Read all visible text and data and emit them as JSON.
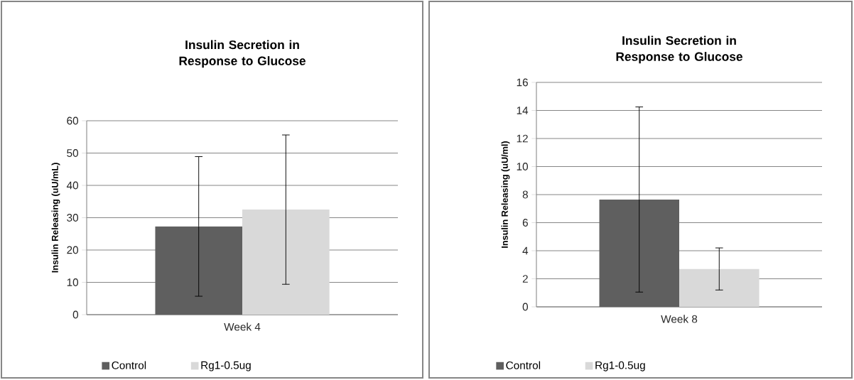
{
  "chart_data": [
    {
      "type": "bar",
      "title": "Insulin Secretion in Response to Glucose",
      "ylabel": "Insulin Releasing (uU/mL)",
      "categories": [
        "Week 4"
      ],
      "series": [
        {
          "name": "Control",
          "color": "#5f5f5f",
          "values": [
            27.3
          ],
          "errors": [
            21.6
          ]
        },
        {
          "name": "Rg1-0.5ug",
          "color": "#d9d9d9",
          "values": [
            32.5
          ],
          "errors": [
            23.1
          ]
        }
      ],
      "ylim": [
        0,
        60
      ],
      "yticks": [
        0,
        10,
        20,
        30,
        40,
        50,
        60
      ],
      "grid": "y",
      "legend": "bottom"
    },
    {
      "type": "bar",
      "title": "Insulin Secretion in Response to Glucose",
      "ylabel": "Insulin Releasing (uU/ml)",
      "categories": [
        "Week 8"
      ],
      "series": [
        {
          "name": "Control",
          "color": "#5f5f5f",
          "values": [
            7.65
          ],
          "errors": [
            6.6
          ]
        },
        {
          "name": "Rg1-0.5ug",
          "color": "#d9d9d9",
          "values": [
            2.7
          ],
          "errors": [
            1.5
          ]
        }
      ],
      "ylim": [
        0,
        16
      ],
      "yticks": [
        0,
        2,
        4,
        6,
        8,
        10,
        12,
        14,
        16
      ],
      "grid": "y",
      "legend": "bottom"
    }
  ]
}
